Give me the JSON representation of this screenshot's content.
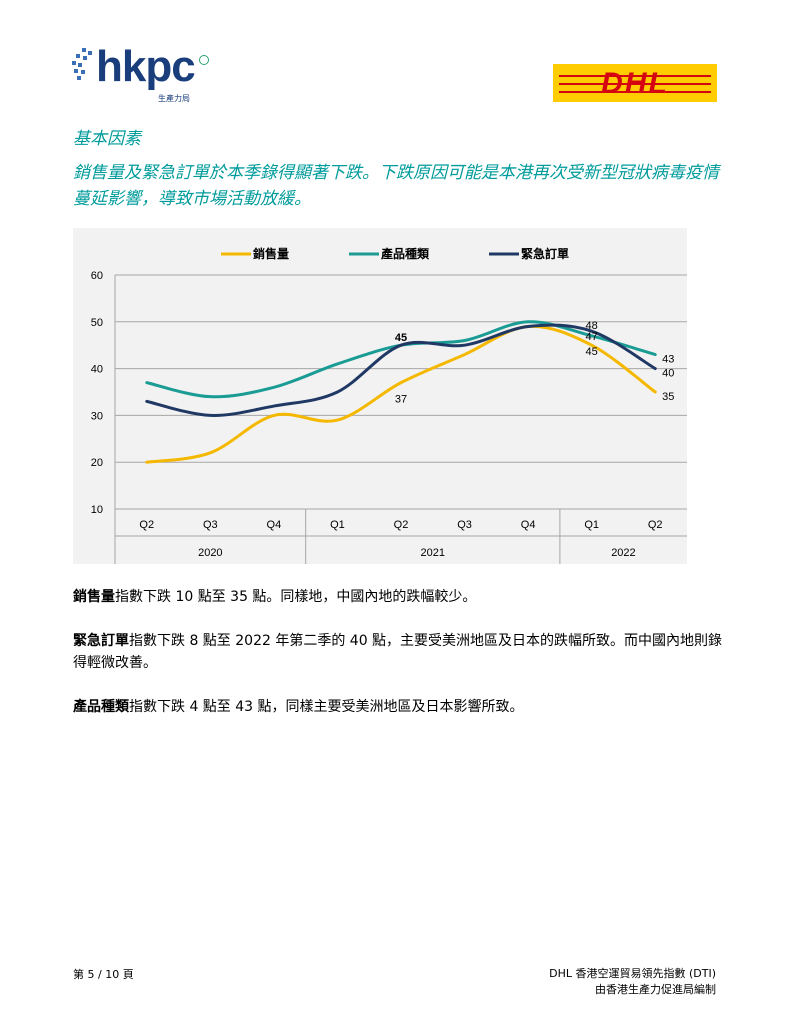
{
  "header": {
    "hkpc_logo": {
      "wordmark": "hkpc",
      "sub": "生產力局"
    },
    "dhl_logo": {
      "wordmark": "DHL"
    }
  },
  "section_title": "基本因素",
  "headline": "銷售量及緊急訂單於本季錄得顯著下跌。下跌原因可能是本港再次受新型冠狀病毒疫情蔓延影響，導致市場活動放緩。",
  "chart_data": {
    "type": "line",
    "x": [
      "Q2",
      "Q3",
      "Q4",
      "Q1",
      "Q2",
      "Q3",
      "Q4",
      "Q1",
      "Q2"
    ],
    "year_groups": [
      {
        "label": "2020",
        "span": 3
      },
      {
        "label": "2021",
        "span": 4
      },
      {
        "label": "2022",
        "span": 2
      }
    ],
    "ylim": [
      10,
      60
    ],
    "yticks": [
      10,
      20,
      30,
      40,
      50,
      60
    ],
    "grid": true,
    "legend_position": "top",
    "series": [
      {
        "name": "銷售量",
        "color": "#f5b800",
        "values": [
          20,
          22,
          30,
          29,
          37,
          43,
          49,
          45,
          35
        ]
      },
      {
        "name": "產品種類",
        "color": "#1a9c95",
        "values": [
          37,
          34,
          36,
          41,
          45,
          46,
          50,
          47,
          43
        ]
      },
      {
        "name": "緊急訂單",
        "color": "#1f3864",
        "values": [
          33,
          30,
          32,
          35,
          45,
          45,
          49,
          48,
          40
        ]
      }
    ],
    "data_labels": [
      {
        "text": "45",
        "x_index": 4,
        "value": 45
      },
      {
        "text": "37",
        "x_index": 4,
        "value": 37
      },
      {
        "text": "48",
        "x_index": 7,
        "value": 48
      },
      {
        "text": "47",
        "x_index": 7,
        "value": 47
      },
      {
        "text": "45",
        "x_index": 7,
        "value": 45
      },
      {
        "text": "43",
        "x_index": 8,
        "value": 43
      },
      {
        "text": "40",
        "x_index": 8,
        "value": 40
      },
      {
        "text": "35",
        "x_index": 8,
        "value": 35
      }
    ]
  },
  "paragraphs": [
    {
      "bold": "銷售量",
      "text": "指數下跌 10 點至 35 點。同樣地，中國內地的跌幅較少。"
    },
    {
      "bold": "緊急訂單",
      "text": "指數下跌 8 點至 2022 年第二季的 40 點，主要受美洲地區及日本的跌幅所致。而中國內地則錄得輕微改善。"
    },
    {
      "bold": "產品種類",
      "text": "指數下跌 4 點至 43 點，同樣主要受美洲地區及日本影響所致。"
    }
  ],
  "footer": {
    "page": "第 5 / 10 頁",
    "line1": "DHL 香港空運貿易領先指數 (DTI)",
    "line2": "由香港生產力促進局編制"
  }
}
